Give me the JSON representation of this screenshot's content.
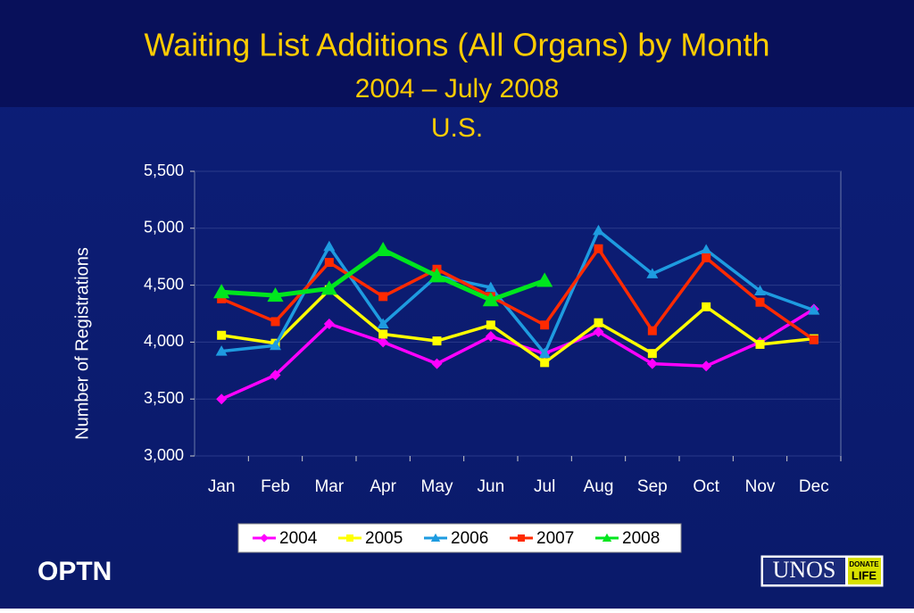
{
  "chart_data": {
    "type": "line",
    "title": "Waiting List Additions (All Organs) by Month",
    "subtitle": [
      "2004 – July 2008",
      "U.S."
    ],
    "y_label": "Number of Registrations",
    "categories": [
      "Jan",
      "Feb",
      "Mar",
      "Apr",
      "May",
      "Jun",
      "Jul",
      "Aug",
      "Sep",
      "Oct",
      "Nov",
      "Dec"
    ],
    "series": [
      {
        "name": "2004",
        "color": "#ff00ff",
        "marker": "diamond",
        "values": [
          3500,
          3710,
          4160,
          4000,
          3810,
          4050,
          3900,
          4090,
          3810,
          3790,
          4000,
          4290
        ]
      },
      {
        "name": "2005",
        "color": "#ffff00",
        "marker": "square",
        "values": [
          4060,
          3990,
          4460,
          4070,
          4010,
          4150,
          3820,
          4170,
          3900,
          4310,
          3980,
          4030
        ]
      },
      {
        "name": "2006",
        "color": "#1e9be0",
        "marker": "triangle",
        "values": [
          3920,
          3970,
          4840,
          4160,
          4580,
          4480,
          3900,
          4980,
          4600,
          4810,
          4450,
          4280
        ]
      },
      {
        "name": "2007",
        "color": "#ff2a00",
        "marker": "square",
        "values": [
          4380,
          4180,
          4700,
          4400,
          4640,
          4400,
          4150,
          4820,
          4100,
          4740,
          4350,
          4020
        ]
      },
      {
        "name": "2008",
        "color": "#00e61e",
        "marker": "triangle",
        "values": [
          4440,
          4410,
          4470,
          4810,
          4580,
          4370,
          4540,
          null,
          null,
          null,
          null,
          null
        ]
      }
    ],
    "ylim": [
      3000,
      5500
    ],
    "yticks": [
      {
        "value": 3000,
        "label": "3,000"
      },
      {
        "value": 3500,
        "label": "3,500"
      },
      {
        "value": 4000,
        "label": "4,000"
      },
      {
        "value": 4500,
        "label": "4,500"
      },
      {
        "value": 5000,
        "label": "5,000"
      },
      {
        "value": 5500,
        "label": "5,500"
      }
    ],
    "grid": true,
    "legend": "bottom"
  },
  "footer": {
    "left": "OPTN",
    "logo": "UNOS",
    "badge": [
      "DONATE",
      "LIFE"
    ]
  }
}
